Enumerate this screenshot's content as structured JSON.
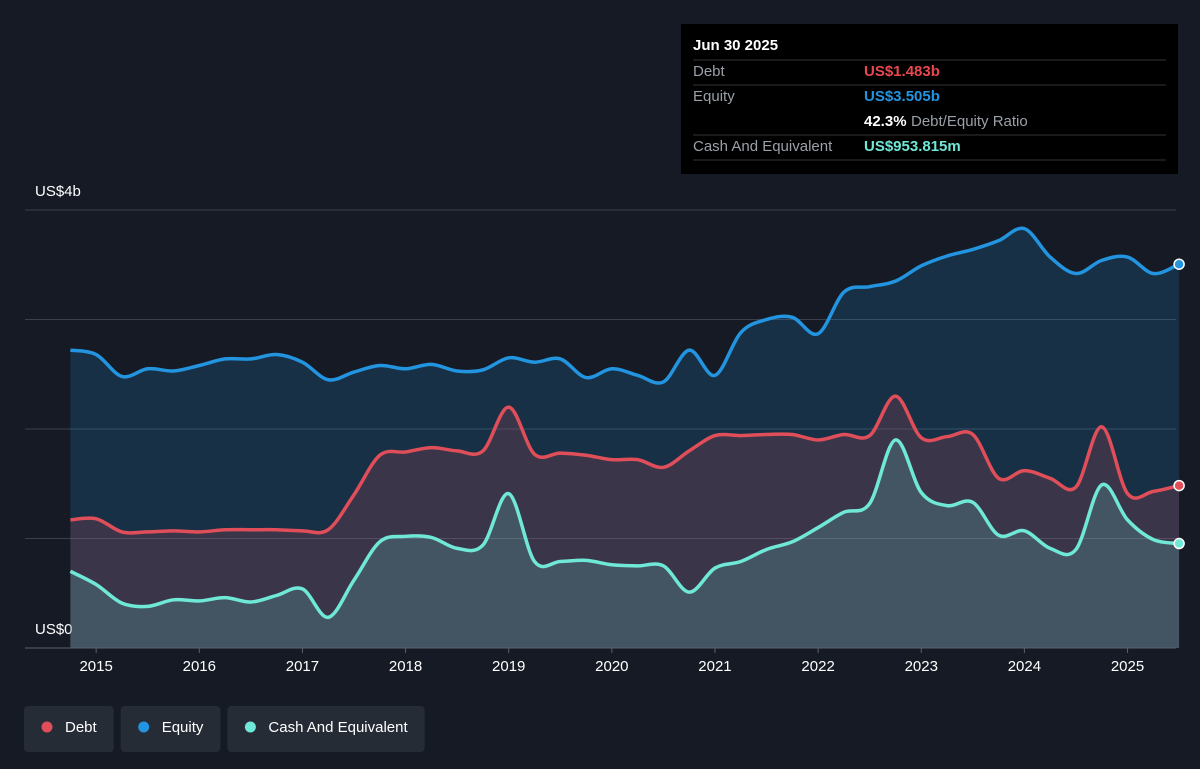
{
  "chart_data": {
    "type": "line",
    "x": [
      2014.75,
      2015,
      2015.25,
      2015.5,
      2015.75,
      2016,
      2016.25,
      2016.5,
      2016.75,
      2017,
      2017.25,
      2017.5,
      2017.75,
      2018,
      2018.25,
      2018.5,
      2018.75,
      2019,
      2019.25,
      2019.5,
      2019.75,
      2020,
      2020.25,
      2020.5,
      2020.75,
      2021,
      2021.25,
      2021.5,
      2021.75,
      2022,
      2022.25,
      2022.5,
      2022.75,
      2023,
      2023.25,
      2023.5,
      2023.75,
      2024,
      2024.25,
      2024.5,
      2024.75,
      2025,
      2025.25,
      2025.5
    ],
    "series": [
      {
        "name": "Debt",
        "color": "#e04e5a",
        "values": [
          1.17,
          1.18,
          1.06,
          1.06,
          1.07,
          1.06,
          1.08,
          1.08,
          1.08,
          1.07,
          1.08,
          1.4,
          1.76,
          1.79,
          1.83,
          1.8,
          1.8,
          2.2,
          1.77,
          1.78,
          1.76,
          1.72,
          1.72,
          1.65,
          1.8,
          1.94,
          1.94,
          1.95,
          1.95,
          1.9,
          1.95,
          1.94,
          2.3,
          1.92,
          1.93,
          1.95,
          1.55,
          1.62,
          1.55,
          1.47,
          2.02,
          1.41,
          1.43,
          1.483
        ]
      },
      {
        "name": "Equity",
        "color": "#2394df",
        "values": [
          2.72,
          2.68,
          2.48,
          2.55,
          2.53,
          2.58,
          2.64,
          2.64,
          2.68,
          2.61,
          2.45,
          2.52,
          2.58,
          2.55,
          2.59,
          2.53,
          2.54,
          2.65,
          2.61,
          2.64,
          2.47,
          2.55,
          2.49,
          2.43,
          2.72,
          2.49,
          2.88,
          3.0,
          3.02,
          2.87,
          3.25,
          3.3,
          3.35,
          3.49,
          3.58,
          3.64,
          3.72,
          3.83,
          3.57,
          3.42,
          3.54,
          3.57,
          3.42,
          3.505
        ]
      },
      {
        "name": "Cash And Equivalent",
        "color": "#70e8d8",
        "values": [
          0.7,
          0.58,
          0.41,
          0.38,
          0.44,
          0.43,
          0.46,
          0.42,
          0.48,
          0.54,
          0.28,
          0.62,
          0.97,
          1.02,
          1.01,
          0.91,
          0.94,
          1.41,
          0.79,
          0.79,
          0.8,
          0.76,
          0.75,
          0.75,
          0.51,
          0.73,
          0.79,
          0.9,
          0.97,
          1.1,
          1.24,
          1.32,
          1.9,
          1.42,
          1.3,
          1.33,
          1.03,
          1.07,
          0.91,
          0.9,
          1.49,
          1.17,
          0.99,
          0.953815
        ]
      }
    ],
    "xlim": [
      2014.31,
      2025.47
    ],
    "xticks": [
      2015,
      2016,
      2017,
      2018,
      2019,
      2020,
      2021,
      2022,
      2023,
      2024,
      2025
    ],
    "ylim": [
      0,
      4
    ],
    "yticks": [
      {
        "value": 4,
        "label": "US$4b"
      },
      {
        "value": 0,
        "label": "US$0"
      }
    ],
    "ygrid": [
      0,
      1,
      2,
      3,
      4
    ],
    "tooltip": {
      "date": "Jun 30 2025",
      "rows": [
        {
          "label": "Debt",
          "value": "US$1.483b"
        },
        {
          "label": "Equity",
          "value": "US$3.505b"
        },
        {
          "label": "Cash And Equivalent",
          "value": "US$953.815m"
        }
      ],
      "ratio": "42.3%",
      "ratio_label": "Debt/Equity Ratio"
    }
  }
}
